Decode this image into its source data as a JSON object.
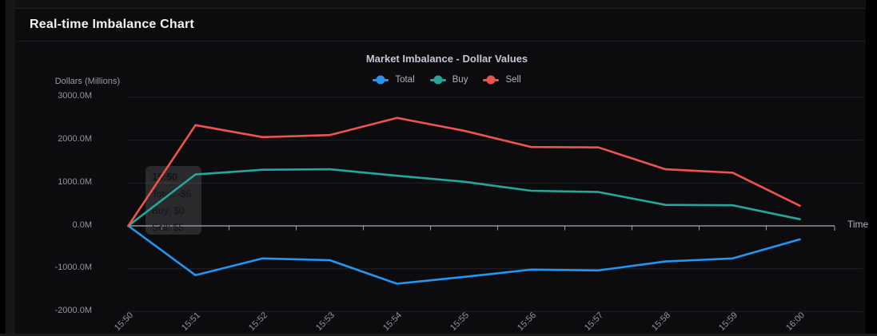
{
  "header": {
    "title": "Real-time Imbalance Chart"
  },
  "chart_data": {
    "type": "line",
    "title": "Market Imbalance - Dollar Values",
    "xlabel": "Time",
    "ylabel": "Dollars (Millions)",
    "x": [
      "15:50",
      "15:51",
      "15:52",
      "15:53",
      "15:54",
      "15:55",
      "15:56",
      "15:57",
      "15:58",
      "15:59",
      "16:00"
    ],
    "series": [
      {
        "name": "Total",
        "color": "#2196f3",
        "values": [
          0,
          -1150,
          -760,
          -800,
          -1350,
          -1190,
          -1020,
          -1040,
          -830,
          -760,
          -315
        ]
      },
      {
        "name": "Buy",
        "color": "#26a69a",
        "values": [
          0,
          1200,
          1310,
          1320,
          1170,
          1030,
          820,
          790,
          490,
          480,
          155
        ]
      },
      {
        "name": "Sell",
        "color": "#ef5350",
        "values": [
          0,
          2350,
          2070,
          2120,
          2520,
          2220,
          1840,
          1830,
          1320,
          1240,
          470
        ]
      }
    ],
    "values_unit": "millions of dollars",
    "y_tick_labels": [
      "3000.0M",
      "2000.0M",
      "1000.0M",
      "0.0M",
      "-1000.0M",
      "-2000.0M"
    ],
    "ylim": [
      -2000,
      3000
    ],
    "grid": "horizontal",
    "legend_position": "top-center"
  },
  "tooltip": {
    "time": "15:50",
    "lines": [
      "Total: -$5",
      "Buy: $0",
      "Sell: $5"
    ]
  },
  "colors": {
    "total_series": "#2196f3",
    "buy_series": "#26a69a",
    "sell_series": "#ef5350",
    "zero_axis_line": "#d5d5da",
    "gridline": "#232229",
    "card_background": "#0c0c0f",
    "page_background": "#000000"
  }
}
